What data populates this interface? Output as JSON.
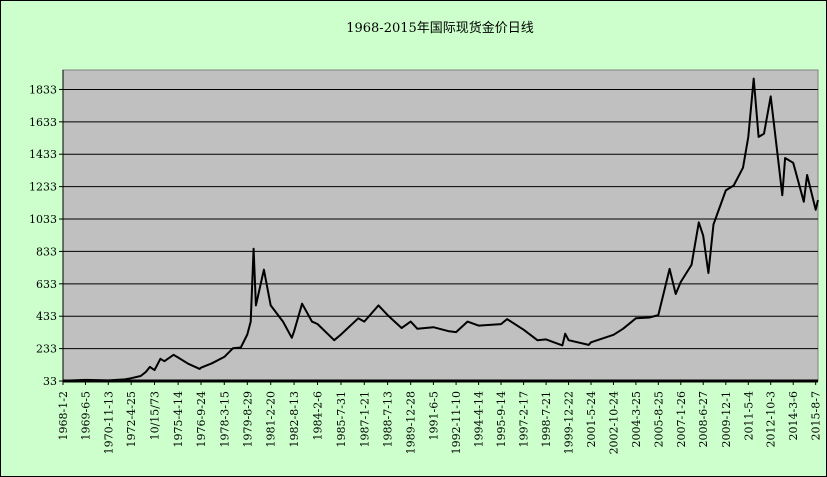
{
  "chart_data": {
    "type": "line",
    "title": "1968-2015年国际现货金价日线",
    "xlabel": "",
    "ylabel": "",
    "ylim": [
      33,
      1953
    ],
    "x_range": [
      "1968-01-02",
      "2015-09-30"
    ],
    "grid": true,
    "legend": "none",
    "y_ticks": [
      "33",
      "233",
      "433",
      "633",
      "833",
      "1033",
      "1233",
      "1433",
      "1633",
      "1833"
    ],
    "y_tick_values": [
      33,
      233,
      433,
      633,
      833,
      1033,
      1233,
      1433,
      1633,
      1833
    ],
    "x_tick_labels": [
      "1968-1-2",
      "1969-6-5",
      "1970-11-13",
      "1972-4-25",
      "10/15/73",
      "1975-4-14",
      "1976-9-24",
      "1978-3-15",
      "1979-8-29",
      "1981-2-20",
      "1982-8-13",
      "1984-2-6",
      "1985-7-31",
      "1987-1-21",
      "1988-7-13",
      "1989-12-28",
      "1991-6-5",
      "1992-11-10",
      "1994-4-14",
      "1995-9-14",
      "1997-2-17",
      "1998-7-21",
      "1999-12-22",
      "2001-5-24",
      "2002-10-24",
      "2004-3-25",
      "2005-8-25",
      "2007-1-26",
      "2008-6-27",
      "2009-12-1",
      "2011-5-4",
      "2012-10-3",
      "2014-3-6",
      "2015-8-7"
    ],
    "x_tick_dates": [
      "1968-01-02",
      "1969-06-05",
      "1970-11-13",
      "1972-04-25",
      "1973-10-15",
      "1975-04-14",
      "1976-09-24",
      "1978-03-15",
      "1979-08-29",
      "1981-02-20",
      "1982-08-13",
      "1984-02-06",
      "1985-07-31",
      "1987-01-21",
      "1988-07-13",
      "1989-12-28",
      "1991-06-05",
      "1992-11-10",
      "1994-04-14",
      "1995-09-14",
      "1997-02-17",
      "1998-07-21",
      "1999-12-22",
      "2001-05-24",
      "2002-10-24",
      "2004-03-25",
      "2005-08-25",
      "2007-01-26",
      "2008-06-27",
      "2009-12-01",
      "2011-05-04",
      "2012-10-03",
      "2014-03-06",
      "2015-08-07"
    ],
    "series": [
      {
        "name": "",
        "color": "#000000",
        "points": [
          [
            "1968-01-02",
            35
          ],
          [
            "1969-06-05",
            40
          ],
          [
            "1970-11-13",
            37
          ],
          [
            "1971-12-01",
            43
          ],
          [
            "1972-04-25",
            50
          ],
          [
            "1972-12-01",
            64
          ],
          [
            "1973-04-01",
            90
          ],
          [
            "1973-07-01",
            120
          ],
          [
            "1973-10-15",
            100
          ],
          [
            "1974-03-01",
            170
          ],
          [
            "1974-06-01",
            155
          ],
          [
            "1974-12-30",
            195
          ],
          [
            "1975-04-14",
            178
          ],
          [
            "1975-12-01",
            140
          ],
          [
            "1976-08-25",
            108
          ],
          [
            "1976-09-24",
            115
          ],
          [
            "1977-06-01",
            142
          ],
          [
            "1978-03-15",
            182
          ],
          [
            "1978-10-01",
            235
          ],
          [
            "1979-04-01",
            240
          ],
          [
            "1979-08-29",
            320
          ],
          [
            "1979-11-15",
            400
          ],
          [
            "1980-01-21",
            850
          ],
          [
            "1980-03-15",
            500
          ],
          [
            "1980-09-15",
            720
          ],
          [
            "1981-02-20",
            500
          ],
          [
            "1981-12-01",
            400
          ],
          [
            "1982-06-21",
            300
          ],
          [
            "1982-08-13",
            340
          ],
          [
            "1983-02-15",
            510
          ],
          [
            "1983-10-01",
            400
          ],
          [
            "1984-02-06",
            385
          ],
          [
            "1985-02-25",
            285
          ],
          [
            "1985-07-31",
            320
          ],
          [
            "1986-09-01",
            420
          ],
          [
            "1987-01-21",
            400
          ],
          [
            "1987-12-14",
            500
          ],
          [
            "1988-07-13",
            440
          ],
          [
            "1989-06-01",
            360
          ],
          [
            "1989-12-28",
            400
          ],
          [
            "1990-06-01",
            355
          ],
          [
            "1991-06-05",
            365
          ],
          [
            "1992-06-01",
            340
          ],
          [
            "1992-11-10",
            335
          ],
          [
            "1993-08-01",
            400
          ],
          [
            "1994-04-14",
            375
          ],
          [
            "1995-09-14",
            384
          ],
          [
            "1996-02-02",
            415
          ],
          [
            "1997-02-17",
            350
          ],
          [
            "1998-01-01",
            285
          ],
          [
            "1998-07-21",
            290
          ],
          [
            "1999-08-01",
            253
          ],
          [
            "1999-10-05",
            325
          ],
          [
            "1999-12-22",
            285
          ],
          [
            "2001-04-01",
            256
          ],
          [
            "2001-05-24",
            272
          ],
          [
            "2002-10-24",
            318
          ],
          [
            "2003-06-01",
            355
          ],
          [
            "2004-03-25",
            420
          ],
          [
            "2005-02-01",
            425
          ],
          [
            "2005-08-25",
            440
          ],
          [
            "2006-05-12",
            725
          ],
          [
            "2006-10-01",
            570
          ],
          [
            "2007-01-26",
            645
          ],
          [
            "2007-10-01",
            750
          ],
          [
            "2008-03-17",
            1012
          ],
          [
            "2008-06-27",
            930
          ],
          [
            "2008-10-24",
            700
          ],
          [
            "2009-02-20",
            1000
          ],
          [
            "2009-12-01",
            1210
          ],
          [
            "2010-06-01",
            1240
          ],
          [
            "2011-01-01",
            1350
          ],
          [
            "2011-05-04",
            1540
          ],
          [
            "2011-09-06",
            1900
          ],
          [
            "2011-12-29",
            1540
          ],
          [
            "2012-05-01",
            1560
          ],
          [
            "2012-10-03",
            1790
          ],
          [
            "2013-04-15",
            1350
          ],
          [
            "2013-06-28",
            1180
          ],
          [
            "2013-09-01",
            1410
          ],
          [
            "2014-03-06",
            1380
          ],
          [
            "2014-11-06",
            1140
          ],
          [
            "2015-01-22",
            1305
          ],
          [
            "2015-08-07",
            1090
          ],
          [
            "2015-09-30",
            1150
          ]
        ]
      }
    ]
  }
}
